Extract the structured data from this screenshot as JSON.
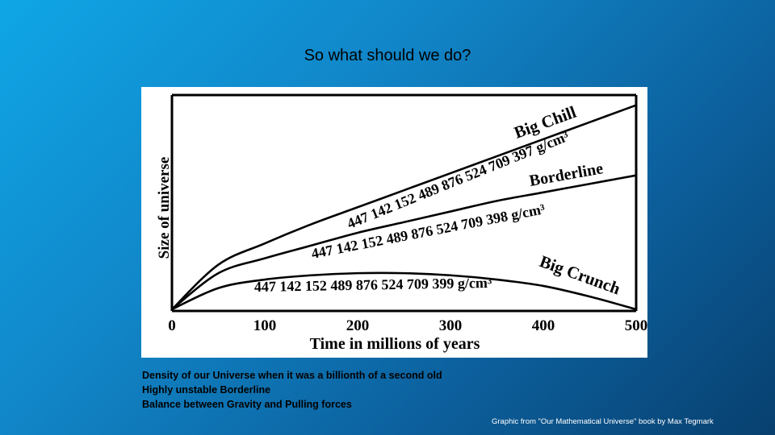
{
  "slide": {
    "title": "So what should we do?",
    "notes": [
      "Density of our Universe when it was a billionth of a second old",
      "Highly unstable Borderline",
      "Balance between Gravity and Pulling forces"
    ],
    "credit": "Graphic from \"Our Mathematical Universe\" book by Max Tegmark"
  },
  "chart_data": {
    "type": "line",
    "xlabel": "Time in millions of years",
    "ylabel": "Size of universe",
    "xlim": [
      0,
      500
    ],
    "xticks": [
      "0",
      "100",
      "200",
      "300",
      "400",
      "500"
    ],
    "series": [
      {
        "name": "Big Chill",
        "density_label": "447 142 152 489 876 524 709 397 g/cm³",
        "x": [
          0,
          50,
          100,
          150,
          200,
          250,
          300,
          350,
          400,
          450,
          500
        ],
        "y": [
          0.0,
          0.21,
          0.31,
          0.4,
          0.48,
          0.56,
          0.64,
          0.72,
          0.8,
          0.88,
          0.96
        ]
      },
      {
        "name": "Borderline",
        "density_label": "447 142 152 489 876 524 709 398 g/cm³",
        "x": [
          0,
          50,
          100,
          150,
          200,
          250,
          300,
          350,
          400,
          450,
          500
        ],
        "y": [
          0.0,
          0.17,
          0.24,
          0.3,
          0.36,
          0.41,
          0.46,
          0.51,
          0.55,
          0.59,
          0.63
        ]
      },
      {
        "name": "Big Crunch",
        "density_label": "447 142 152 489 876 524 709 399 g/cm³",
        "x": [
          0,
          50,
          100,
          150,
          200,
          250,
          300,
          350,
          400,
          450,
          500
        ],
        "y": [
          0.0,
          0.1,
          0.14,
          0.16,
          0.17,
          0.17,
          0.16,
          0.14,
          0.11,
          0.06,
          0.0
        ]
      }
    ]
  }
}
